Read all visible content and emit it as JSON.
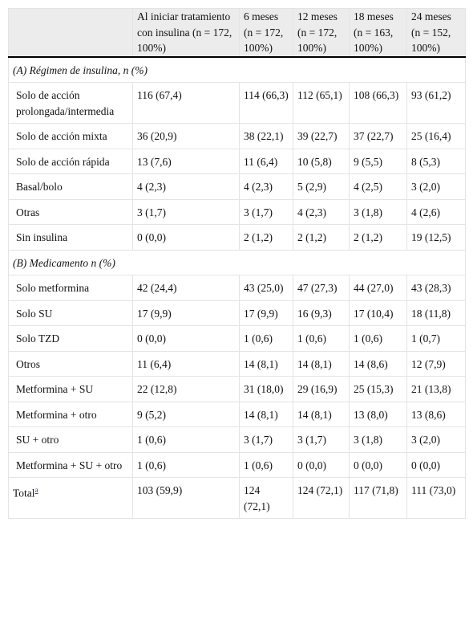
{
  "table": {
    "header": [
      "",
      "Al iniciar tratamiento con insulina (n = 172, 100%)",
      "6 meses (n = 172, 100%)",
      "12 meses (n = 172, 100%)",
      "18 meses (n = 163, 100%)",
      "24 meses (n = 152, 100%)"
    ],
    "sections": [
      {
        "title": "(A) Régimen de insulina, n (%)",
        "rows": [
          [
            "Solo de acción prolongada/intermedia",
            "116 (67,4)",
            "114 (66,3)",
            "112 (65,1)",
            "108 (66,3)",
            "93 (61,2)"
          ],
          [
            "Solo de acción mixta",
            "36 (20,9)",
            "38 (22,1)",
            "39 (22,7)",
            "37 (22,7)",
            "25 (16,4)"
          ],
          [
            "Solo de acción rápida",
            "13 (7,6)",
            "11 (6,4)",
            "10 (5,8)",
            "9 (5,5)",
            "8 (5,3)"
          ],
          [
            "Basal/bolo",
            "4 (2,3)",
            "4 (2,3)",
            "5 (2,9)",
            "4 (2,5)",
            "3 (2,0)"
          ],
          [
            "Otras",
            "3 (1,7)",
            "3 (1,7)",
            "4 (2,3)",
            "3 (1,8)",
            "4 (2,6)"
          ],
          [
            "Sin insulina",
            "0 (0,0)",
            "2 (1,2)",
            "2 (1,2)",
            "2 (1,2)",
            "19 (12,5)"
          ]
        ]
      },
      {
        "title": "(B) Medicamento n (%)",
        "rows": [
          [
            "Solo metformina",
            "42 (24,4)",
            "43 (25,0)",
            "47 (27,3)",
            "44 (27,0)",
            "43 (28,3)"
          ],
          [
            "Solo SU",
            "17 (9,9)",
            "17 (9,9)",
            "16 (9,3)",
            "17 (10,4)",
            "18 (11,8)"
          ],
          [
            "Solo TZD",
            "0 (0,0)",
            "1 (0,6)",
            "1 (0,6)",
            "1 (0,6)",
            "1 (0,7)"
          ],
          [
            "Otros",
            "11 (6,4)",
            "14 (8,1)",
            "14 (8,1)",
            "14 (8,6)",
            "12 (7,9)"
          ],
          [
            "Metformina + SU",
            "22 (12,8)",
            "31 (18,0)",
            "29 (16,9)",
            "25 (15,3)",
            "21 (13,8)"
          ],
          [
            "Metformina + otro",
            "9 (5,2)",
            "14 (8,1)",
            "14 (8,1)",
            "13 (8,0)",
            "13 (8,6)"
          ],
          [
            "SU + otro",
            "1 (0,6)",
            "3 (1,7)",
            "3 (1,7)",
            "3 (1,8)",
            "3 (2,0)"
          ],
          [
            "Metformina + SU + otro",
            "1 (0,6)",
            "1 (0,6)",
            "0 (0,0)",
            "0 (0,0)",
            "0 (0,0)"
          ]
        ]
      }
    ],
    "total": {
      "label": "Total",
      "note": "a",
      "values": [
        "103 (59,9)",
        "124 (72,1)",
        "124 (72,1)",
        "117 (71,8)",
        "111 (73,0)"
      ]
    }
  }
}
